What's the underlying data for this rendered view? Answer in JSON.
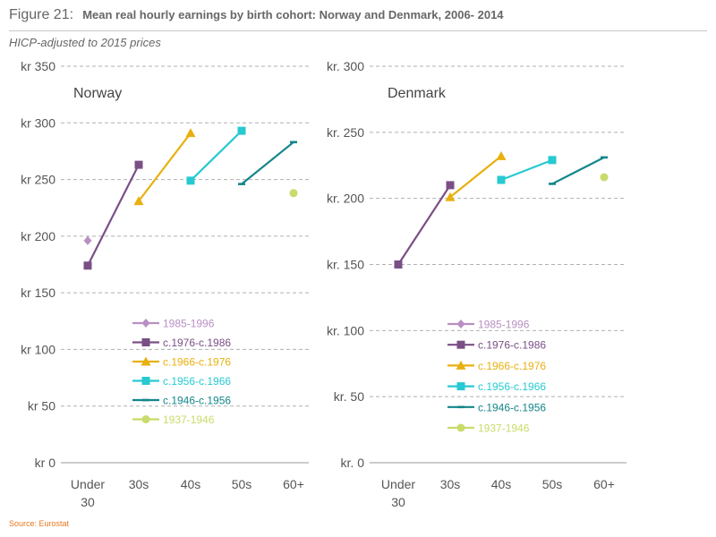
{
  "header": {
    "figure_label": "Figure 21:",
    "title": "Mean real hourly earnings by birth cohort: Norway and Denmark, 2006- 2014",
    "subtitle": "HICP-adjusted to 2015 prices"
  },
  "footer": {
    "source": "Source: Eurostat"
  },
  "colors": {
    "1985-1996": "#b98fc4",
    "c.1976-c.1986": "#7a4f86",
    "c.1966-c.1976": "#e8b010",
    "c.1956-c.1966": "#27c9d2",
    "c.1946-c.1956": "#14868a",
    "1937-1946": "#c9db6a"
  },
  "chart_data": [
    {
      "type": "line",
      "title": "Norway",
      "categories": [
        "Under 30",
        "30s",
        "40s",
        "50s",
        "60+"
      ],
      "ylim": [
        0,
        350
      ],
      "yticks": [
        0,
        50,
        100,
        150,
        200,
        250,
        300,
        350
      ],
      "ytick_labels": [
        "kr 0",
        "kr 50",
        "kr 100",
        "kr 150",
        "kr 200",
        "kr 250",
        "kr 300",
        "kr 350"
      ],
      "grid": true,
      "legend_placement": "center",
      "series": [
        {
          "name": "1985-1996",
          "marker": "diamond",
          "points": [
            {
              "x": 0,
              "y": 196
            }
          ]
        },
        {
          "name": "c.1976-c.1986",
          "marker": "square",
          "points": [
            {
              "x": 0,
              "y": 174
            },
            {
              "x": 1,
              "y": 263
            }
          ]
        },
        {
          "name": "c.1966-c.1976",
          "marker": "triangle",
          "points": [
            {
              "x": 1,
              "y": 231
            },
            {
              "x": 2,
              "y": 291
            }
          ]
        },
        {
          "name": "c.1956-c.1966",
          "marker": "square",
          "points": [
            {
              "x": 2,
              "y": 249
            },
            {
              "x": 3,
              "y": 293
            }
          ]
        },
        {
          "name": "c.1946-c.1956",
          "marker": "dash",
          "points": [
            {
              "x": 3,
              "y": 246
            },
            {
              "x": 4,
              "y": 283
            }
          ]
        },
        {
          "name": "1937-1946",
          "marker": "circle",
          "points": [
            {
              "x": 4,
              "y": 238
            }
          ]
        }
      ]
    },
    {
      "type": "line",
      "title": "Denmark",
      "categories": [
        "Under 30",
        "30s",
        "40s",
        "50s",
        "60+"
      ],
      "ylim": [
        0,
        300
      ],
      "yticks": [
        0,
        50,
        100,
        150,
        200,
        250,
        300
      ],
      "ytick_labels": [
        "kr. 0",
        "kr. 50",
        "kr. 100",
        "kr. 150",
        "kr. 200",
        "kr. 250",
        "kr. 300"
      ],
      "grid": true,
      "legend_placement": "center",
      "series": [
        {
          "name": "1985-1996",
          "marker": "diamond",
          "points": []
        },
        {
          "name": "c.1976-c.1986",
          "marker": "square",
          "points": [
            {
              "x": 0,
              "y": 150
            },
            {
              "x": 1,
              "y": 210
            }
          ]
        },
        {
          "name": "c.1966-c.1976",
          "marker": "triangle",
          "points": [
            {
              "x": 1,
              "y": 201
            },
            {
              "x": 2,
              "y": 232
            }
          ]
        },
        {
          "name": "c.1956-c.1966",
          "marker": "square",
          "points": [
            {
              "x": 2,
              "y": 214
            },
            {
              "x": 3,
              "y": 229
            }
          ]
        },
        {
          "name": "c.1946-c.1956",
          "marker": "dash",
          "points": [
            {
              "x": 3,
              "y": 211
            },
            {
              "x": 4,
              "y": 231
            }
          ]
        },
        {
          "name": "1937-1946",
          "marker": "circle",
          "points": [
            {
              "x": 4,
              "y": 216
            }
          ]
        }
      ]
    }
  ]
}
